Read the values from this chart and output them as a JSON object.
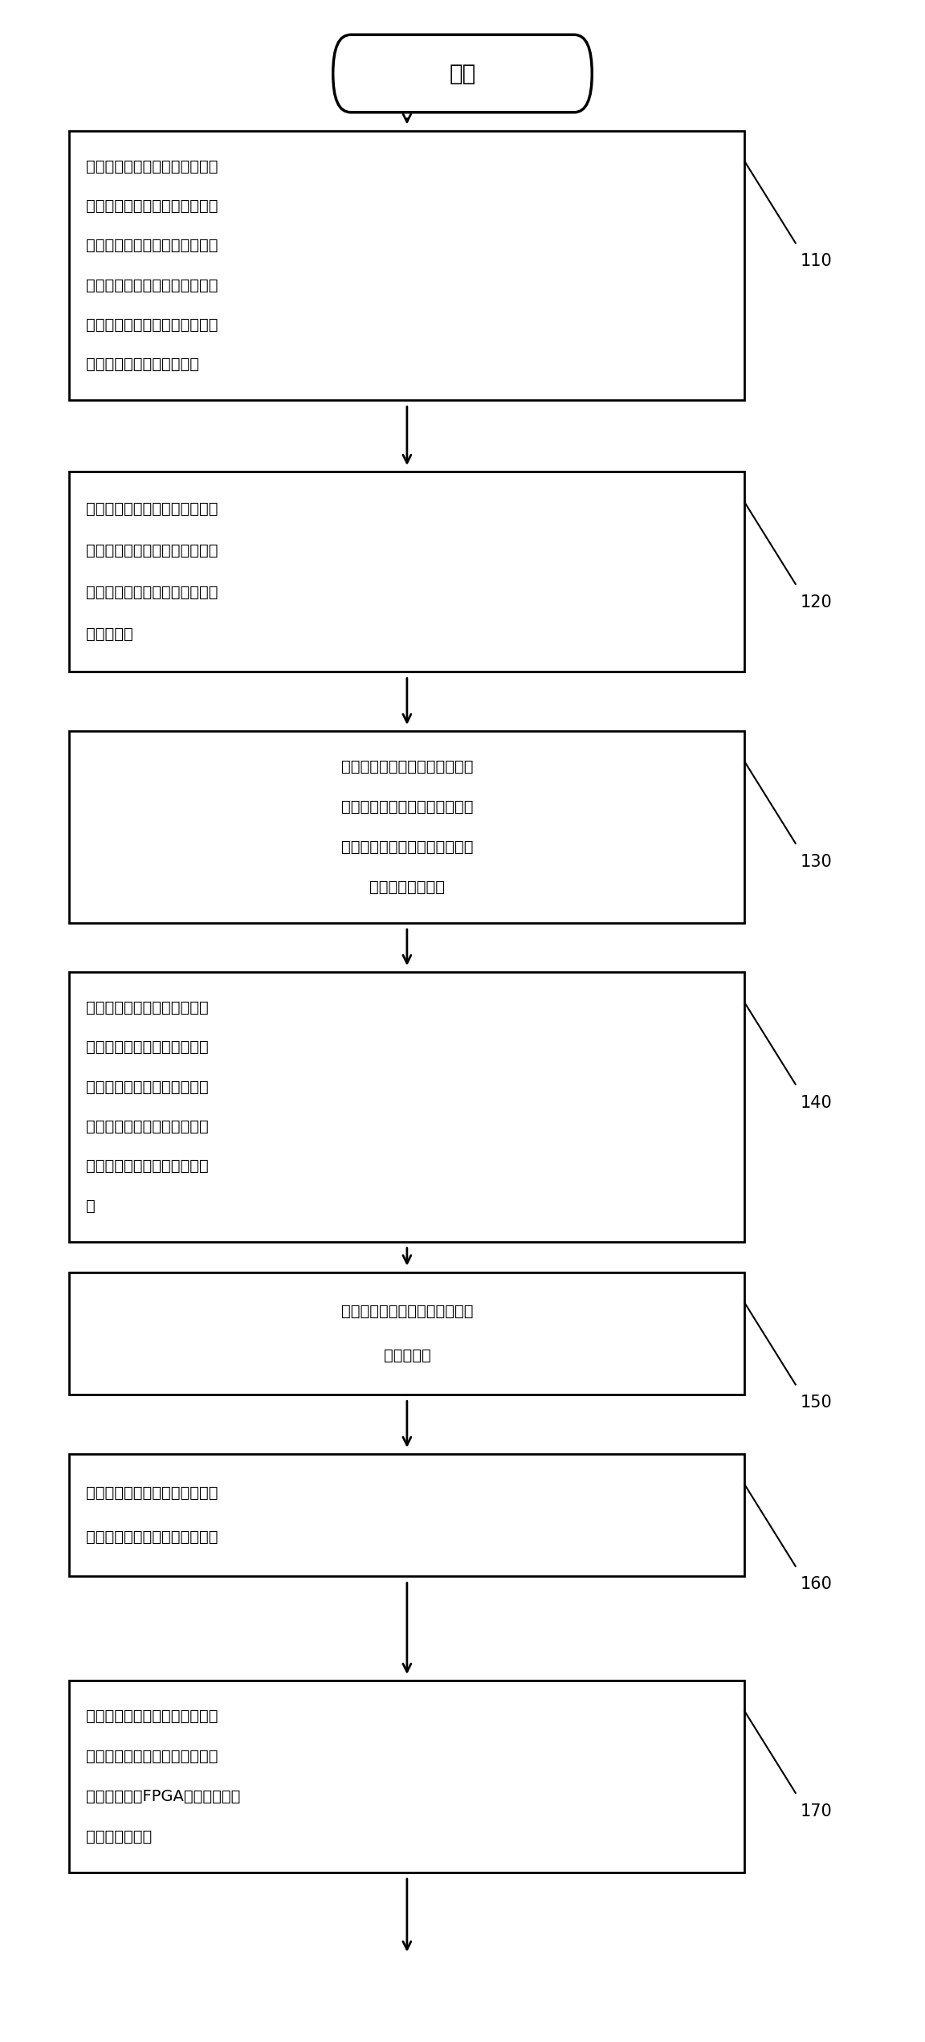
{
  "background_color": "#ffffff",
  "start_label": "开始",
  "boxes": [
    {
      "id": "110",
      "lines": [
        "航天器发射前，使用大气辐射传",
        "输工具得到对目标最大反射率对",
        "应的地物成像时，不同太阳天顶",
        "角对应的相机入瞳辐亮度，通过",
        "曲线拟合建立太阳天顶角与相机",
        "入瞳辐亮度之间的函数关系"
      ],
      "tag": "110",
      "align": "left"
    },
    {
      "id": "120",
      "lines": [
        "空间相机在轨摄影时，相机控制",
        "器通过航天器总线接收航天器的",
        "当前位置和时间，计算星下点的",
        "太阳天顶角"
      ],
      "tag": "120",
      "align": "left"
    },
    {
      "id": "130",
      "lines": [
        "相机控制器通过航天器总线接收",
        "航天器的当前位置、速度和时间",
        "的数据，计算空间相机进行像移",
        "匹配所需的行周期"
      ],
      "tag": "130",
      "align": "center"
    },
    {
      "id": "140",
      "lines": [
        "根据太阳天顶角与相机入瞳辐",
        "亮度之间的函数关系，以及当",
        "前星下点处的太阳天顶角，得",
        "到当前对目标最大反射率对应",
        "的地物成像时的相机入瞳辐亮",
        "度"
      ],
      "tag": "140",
      "align": "left"
    },
    {
      "id": "150",
      "lines": [
        "根据相机入瞳辐亮度计算最优有",
        "效曝光时间"
      ],
      "tag": "150",
      "align": "center"
    },
    {
      "id": "160",
      "lines": [
        "根据最优曝光时间和像移匹配所",
        "需的行周期，计算当前积分级数"
      ],
      "tag": "160",
      "align": "left"
    },
    {
      "id": "170",
      "lines": [
        "将当前积分级数转换为对应的码",
        "値后，通过内部总线将该码値发",
        "送至成像控制FPGA，对相机的积",
        "分级数进行调整"
      ],
      "tag": "170",
      "align": "left"
    }
  ],
  "fig_width": 11.52,
  "fig_height": 25.42,
  "dpi": 100
}
